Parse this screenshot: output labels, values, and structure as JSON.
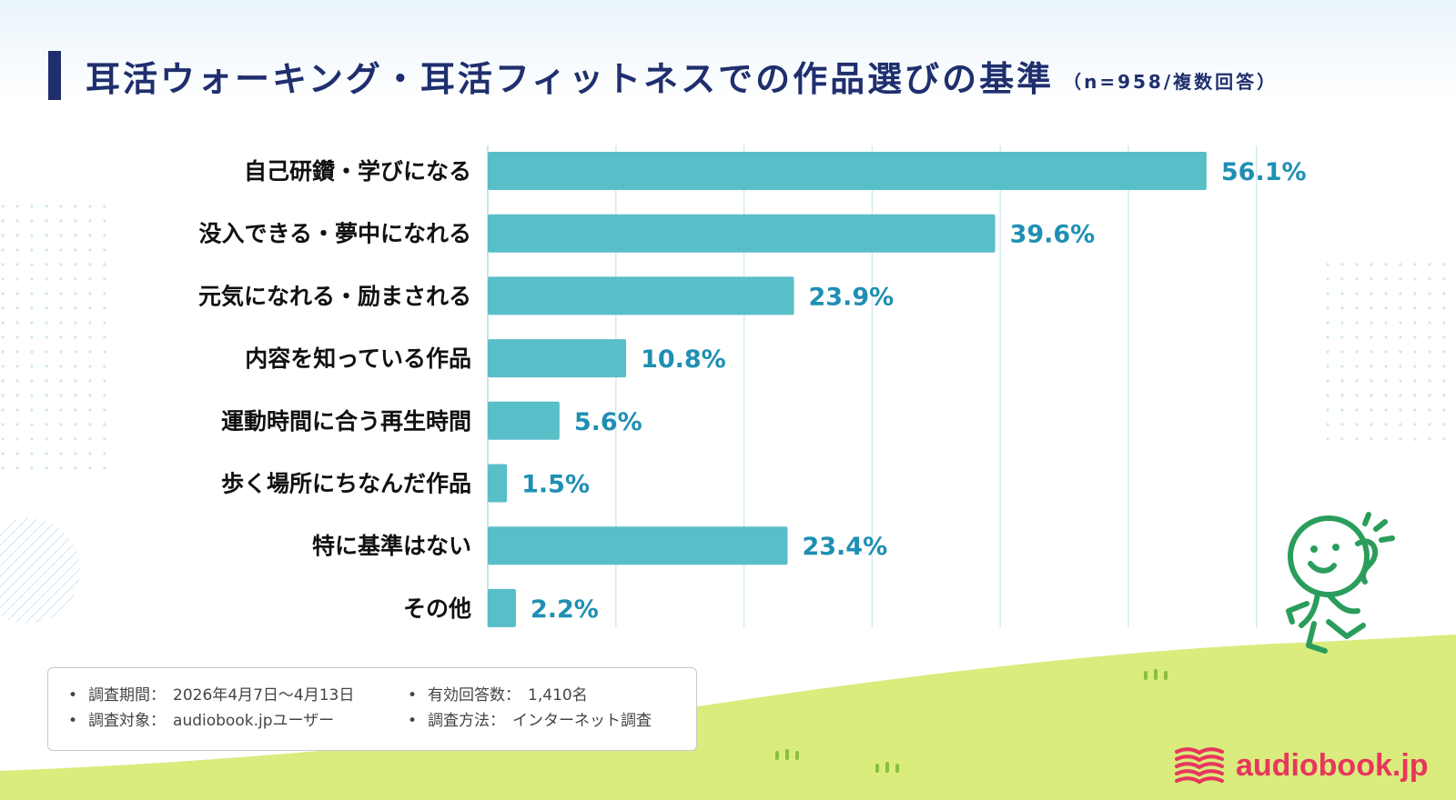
{
  "title": {
    "main": "耳活ウォーキング・耳活フィットネスでの作品選びの基準",
    "sub": "（n=958/複数回答）"
  },
  "chart_data": {
    "type": "bar",
    "orientation": "horizontal",
    "categories": [
      "自己研鑽・学びになる",
      "没入できる・夢中になれる",
      "元気になれる・励まされる",
      "内容を知っている作品",
      "運動時間に合う再生時間",
      "歩く場所にちなんだ作品",
      "特に基準はない",
      "その他"
    ],
    "values": [
      56.1,
      39.6,
      23.9,
      10.8,
      5.6,
      1.5,
      23.4,
      2.2
    ],
    "value_labels": [
      "56.1%",
      "39.6%",
      "23.9%",
      "10.8%",
      "5.6%",
      "1.5%",
      "23.4%",
      "2.2%"
    ],
    "xlim": [
      0,
      60
    ],
    "bar_color": "#58bec8",
    "label_color": "#1f8fb3",
    "grid": true
  },
  "notes": {
    "left": [
      {
        "bullet": "•",
        "label": "調査期間：",
        "value": "2026年4月7日〜4月13日"
      },
      {
        "bullet": "•",
        "label": "調査対象：",
        "value": "audiobook.jpユーザー"
      }
    ],
    "right": [
      {
        "bullet": "•",
        "label": "有効回答数：",
        "value": "1,410名"
      },
      {
        "bullet": "•",
        "label": "調査方法：",
        "value": "インターネット調査"
      }
    ]
  },
  "brand": {
    "name": "audiobook.jp",
    "icon": "book-stack-icon",
    "color": "#e8365d"
  },
  "mascot": {
    "icon": "walking-ear-mascot-icon"
  }
}
